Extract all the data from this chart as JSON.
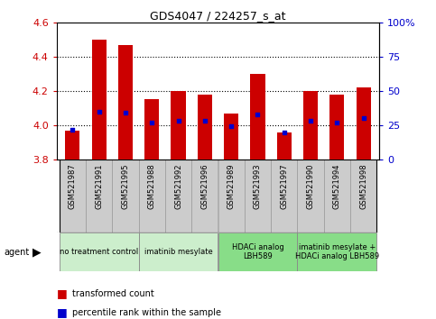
{
  "title": "GDS4047 / 224257_s_at",
  "samples": [
    "GSM521987",
    "GSM521991",
    "GSM521995",
    "GSM521988",
    "GSM521992",
    "GSM521996",
    "GSM521989",
    "GSM521993",
    "GSM521997",
    "GSM521990",
    "GSM521994",
    "GSM521998"
  ],
  "transformed_counts": [
    3.97,
    4.5,
    4.47,
    4.15,
    4.2,
    4.18,
    4.07,
    4.3,
    3.96,
    4.2,
    4.18,
    4.22
  ],
  "percentile_ranks": [
    22,
    35,
    34,
    27,
    28,
    28,
    24,
    33,
    20,
    28,
    27,
    30
  ],
  "ymin": 3.8,
  "ymax": 4.6,
  "y2min": 0,
  "y2max": 100,
  "yticks": [
    3.8,
    4.0,
    4.2,
    4.4,
    4.6
  ],
  "y2ticks": [
    0,
    25,
    50,
    75,
    100
  ],
  "bar_color": "#cc0000",
  "marker_color": "#0000cc",
  "agent_groups": [
    {
      "label": "no treatment control",
      "indices": [
        0,
        1,
        2
      ],
      "color": "#cceecc"
    },
    {
      "label": "imatinib mesylate",
      "indices": [
        3,
        4,
        5
      ],
      "color": "#cceecc"
    },
    {
      "label": "HDACi analog\nLBH589",
      "indices": [
        6,
        7,
        8
      ],
      "color": "#88dd88"
    },
    {
      "label": "imatinib mesylate +\nHDACi analog LBH589",
      "indices": [
        9,
        10,
        11
      ],
      "color": "#88dd88"
    }
  ],
  "legend_items": [
    {
      "label": "transformed count",
      "color": "#cc0000"
    },
    {
      "label": "percentile rank within the sample",
      "color": "#0000cc"
    }
  ],
  "bar_width": 0.55,
  "grid_yticks": [
    4.0,
    4.2,
    4.4
  ],
  "bar_bottom": 3.8,
  "bg_color": "#ffffff",
  "tick_color_left": "#cc0000",
  "tick_color_right": "#0000cc",
  "sample_box_color": "#cccccc",
  "group_border_color": "#888888",
  "label_agent": "agent"
}
